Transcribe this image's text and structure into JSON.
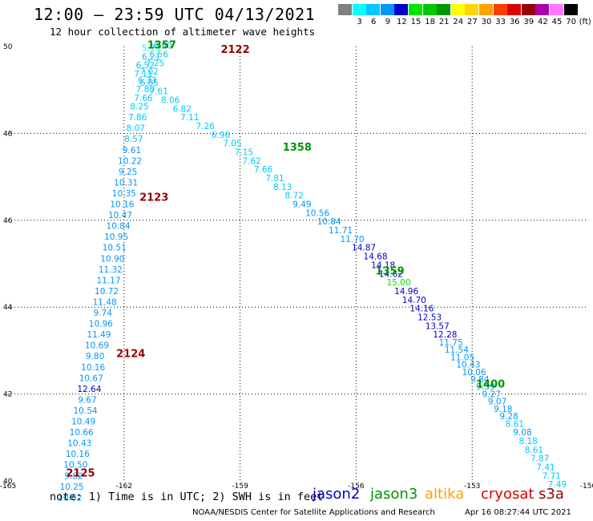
{
  "title": "12:00 — 23:59 UTC 04/13/2021",
  "subtitle": "12 hour collection of altimeter wave heights",
  "colorbar": {
    "unit": "(ft)",
    "swatches": [
      {
        "label": "",
        "color": "#808080"
      },
      {
        "label": "3",
        "color": "#00ffff"
      },
      {
        "label": "6",
        "color": "#00c8ff"
      },
      {
        "label": "9",
        "color": "#0096ff"
      },
      {
        "label": "12",
        "color": "#0000cd"
      },
      {
        "label": "15",
        "color": "#00e600"
      },
      {
        "label": "18",
        "color": "#00c800"
      },
      {
        "label": "21",
        "color": "#009600"
      },
      {
        "label": "24",
        "color": "#ffff00"
      },
      {
        "label": "27",
        "color": "#ffd200"
      },
      {
        "label": "30",
        "color": "#ffa000"
      },
      {
        "label": "33",
        "color": "#ff3c00"
      },
      {
        "label": "36",
        "color": "#dc0000"
      },
      {
        "label": "39",
        "color": "#960000"
      },
      {
        "label": "42",
        "color": "#aa00aa"
      },
      {
        "label": "45",
        "color": "#ff78ff"
      },
      {
        "label": "70",
        "color": "#000000"
      }
    ]
  },
  "chart_data": {
    "type": "scatter",
    "title": "12:00 — 23:59 UTC 04/13/2021",
    "xlim": [
      -165,
      -150
    ],
    "ylim": [
      40,
      50
    ],
    "xticks": [
      -165,
      -162,
      -159,
      -156,
      -153,
      -150
    ],
    "xtick_labels": [
      "-165",
      "-162",
      "-159",
      "-156",
      "-153",
      "-150"
    ],
    "yticks": [
      40,
      42,
      44,
      46,
      48,
      50
    ],
    "ytick_labels": [
      "40",
      "42",
      "44",
      "46",
      "48",
      "50"
    ],
    "grid": true,
    "time_labels": [
      {
        "text": "1357",
        "lon": -161.4,
        "lat": 49.95,
        "color": "#009600"
      },
      {
        "text": "2122",
        "lon": -159.5,
        "lat": 49.85,
        "color": "#960000"
      },
      {
        "text": "1358",
        "lon": -157.9,
        "lat": 47.6,
        "color": "#009600"
      },
      {
        "text": "2123",
        "lon": -161.6,
        "lat": 46.45,
        "color": "#960000"
      },
      {
        "text": "1359",
        "lon": -155.5,
        "lat": 44.75,
        "color": "#009600"
      },
      {
        "text": "2124",
        "lon": -162.2,
        "lat": 42.85,
        "color": "#960000"
      },
      {
        "text": "1400",
        "lon": -152.9,
        "lat": 42.15,
        "color": "#009600"
      },
      {
        "text": "2125",
        "lon": -163.5,
        "lat": 40.1,
        "color": "#960000"
      }
    ],
    "series": [
      {
        "name": "jason3",
        "points": [
          {
            "lon": -161.3,
            "lat": 49.9,
            "v": "5.75"
          },
          {
            "lon": -161.3,
            "lat": 49.7,
            "v": "6.21"
          },
          {
            "lon": -161.45,
            "lat": 49.5,
            "v": "6.52"
          },
          {
            "lon": -161.5,
            "lat": 49.3,
            "v": "7.11"
          },
          {
            "lon": -161.35,
            "lat": 49.1,
            "v": "6.85"
          },
          {
            "lon": -161.1,
            "lat": 48.9,
            "v": "7.61"
          },
          {
            "lon": -160.8,
            "lat": 48.7,
            "v": "8.06"
          },
          {
            "lon": -160.5,
            "lat": 48.5,
            "v": "6.82"
          },
          {
            "lon": -160.3,
            "lat": 48.3,
            "v": "7.11"
          },
          {
            "lon": -159.9,
            "lat": 48.1,
            "v": "7.26"
          },
          {
            "lon": -159.5,
            "lat": 47.9,
            "v": "6.96"
          },
          {
            "lon": -159.2,
            "lat": 47.7,
            "v": "7.05"
          },
          {
            "lon": -158.9,
            "lat": 47.5,
            "v": "7.15"
          },
          {
            "lon": -158.7,
            "lat": 47.3,
            "v": "7.62"
          },
          {
            "lon": -158.4,
            "lat": 47.1,
            "v": "7.66"
          },
          {
            "lon": -158.1,
            "lat": 46.9,
            "v": "7.81"
          },
          {
            "lon": -157.9,
            "lat": 46.7,
            "v": "8.13"
          },
          {
            "lon": -157.6,
            "lat": 46.5,
            "v": "8.72"
          },
          {
            "lon": -157.4,
            "lat": 46.3,
            "v": "9.49"
          },
          {
            "lon": -157.0,
            "lat": 46.1,
            "v": "10.56"
          },
          {
            "lon": -156.7,
            "lat": 45.9,
            "v": "10.84"
          },
          {
            "lon": -156.4,
            "lat": 45.7,
            "v": "11.71"
          },
          {
            "lon": -156.1,
            "lat": 45.5,
            "v": "11.70"
          },
          {
            "lon": -155.8,
            "lat": 45.3,
            "v": "14.87"
          },
          {
            "lon": -155.5,
            "lat": 45.1,
            "v": "14.68"
          },
          {
            "lon": -155.3,
            "lat": 44.9,
            "v": "14.18"
          },
          {
            "lon": -155.1,
            "lat": 44.7,
            "v": "14.62"
          },
          {
            "lon": -154.9,
            "lat": 44.5,
            "v": "15.00"
          },
          {
            "lon": -154.7,
            "lat": 44.3,
            "v": "14.96"
          },
          {
            "lon": -154.5,
            "lat": 44.1,
            "v": "14.70"
          },
          {
            "lon": -154.3,
            "lat": 43.9,
            "v": "14.16"
          },
          {
            "lon": -154.1,
            "lat": 43.7,
            "v": "12.53"
          },
          {
            "lon": -153.9,
            "lat": 43.5,
            "v": "13.57"
          },
          {
            "lon": -153.7,
            "lat": 43.3,
            "v": "12.28"
          },
          {
            "lon": -153.55,
            "lat": 43.12,
            "v": "11.75"
          },
          {
            "lon": -153.4,
            "lat": 42.95,
            "v": "11.54"
          },
          {
            "lon": -153.25,
            "lat": 42.78,
            "v": "11.05"
          },
          {
            "lon": -153.1,
            "lat": 42.61,
            "v": "10.43"
          },
          {
            "lon": -152.95,
            "lat": 42.44,
            "v": "10.06"
          },
          {
            "lon": -152.8,
            "lat": 42.27,
            "v": "9.84"
          },
          {
            "lon": -152.65,
            "lat": 42.1,
            "v": "9.59"
          },
          {
            "lon": -152.5,
            "lat": 41.93,
            "v": "9.27"
          },
          {
            "lon": -152.35,
            "lat": 41.76,
            "v": "9.07"
          },
          {
            "lon": -152.2,
            "lat": 41.59,
            "v": "9.18"
          },
          {
            "lon": -152.05,
            "lat": 41.42,
            "v": "9.28"
          },
          {
            "lon": -151.9,
            "lat": 41.25,
            "v": "8.61"
          },
          {
            "lon": -151.7,
            "lat": 41.05,
            "v": "9.08"
          },
          {
            "lon": -151.55,
            "lat": 40.85,
            "v": "8.18"
          },
          {
            "lon": -151.4,
            "lat": 40.65,
            "v": "8.61"
          },
          {
            "lon": -151.25,
            "lat": 40.45,
            "v": "7.87"
          },
          {
            "lon": -151.1,
            "lat": 40.25,
            "v": "7.41"
          },
          {
            "lon": -150.95,
            "lat": 40.05,
            "v": "7.71"
          },
          {
            "lon": -150.8,
            "lat": 39.85,
            "v": "7.49"
          }
        ]
      },
      {
        "name": "cryosat",
        "points": [
          {
            "lon": -161.0,
            "lat": 49.95,
            "v": "6.90"
          },
          {
            "lon": -161.1,
            "lat": 49.75,
            "v": "6.56"
          },
          {
            "lon": -161.2,
            "lat": 49.55,
            "v": "7.25"
          },
          {
            "lon": -161.35,
            "lat": 49.35,
            "v": "7.02"
          },
          {
            "lon": -161.4,
            "lat": 49.15,
            "v": "6.33"
          },
          {
            "lon": -161.45,
            "lat": 48.95,
            "v": "7.80"
          },
          {
            "lon": -161.5,
            "lat": 48.75,
            "v": "7.66"
          },
          {
            "lon": -161.6,
            "lat": 48.55,
            "v": "8.25"
          },
          {
            "lon": -161.65,
            "lat": 48.3,
            "v": "7.86"
          },
          {
            "lon": -161.7,
            "lat": 48.05,
            "v": "8.07"
          },
          {
            "lon": -161.75,
            "lat": 47.8,
            "v": "8.57"
          },
          {
            "lon": -161.8,
            "lat": 47.55,
            "v": "9.61"
          },
          {
            "lon": -161.85,
            "lat": 47.3,
            "v": "10.22"
          },
          {
            "lon": -161.9,
            "lat": 47.05,
            "v": "9.25"
          },
          {
            "lon": -161.95,
            "lat": 46.8,
            "v": "10.31"
          },
          {
            "lon": -162.0,
            "lat": 46.55,
            "v": "10.35"
          },
          {
            "lon": -162.05,
            "lat": 46.3,
            "v": "10.16"
          },
          {
            "lon": -162.1,
            "lat": 46.05,
            "v": "10.47"
          },
          {
            "lon": -162.15,
            "lat": 45.8,
            "v": "10.84"
          },
          {
            "lon": -162.2,
            "lat": 45.55,
            "v": "10.95"
          },
          {
            "lon": -162.25,
            "lat": 45.3,
            "v": "10.51"
          },
          {
            "lon": -162.3,
            "lat": 45.05,
            "v": "10.90"
          },
          {
            "lon": -162.35,
            "lat": 44.8,
            "v": "11.32"
          },
          {
            "lon": -162.4,
            "lat": 44.55,
            "v": "11.17"
          },
          {
            "lon": -162.45,
            "lat": 44.3,
            "v": "10.72"
          },
          {
            "lon": -162.5,
            "lat": 44.05,
            "v": "11.48"
          },
          {
            "lon": -162.55,
            "lat": 43.8,
            "v": "9.74"
          },
          {
            "lon": -162.6,
            "lat": 43.55,
            "v": "10.96"
          },
          {
            "lon": -162.65,
            "lat": 43.3,
            "v": "11.49"
          },
          {
            "lon": -162.7,
            "lat": 43.05,
            "v": "10.69"
          },
          {
            "lon": -162.75,
            "lat": 42.8,
            "v": "9.80"
          },
          {
            "lon": -162.8,
            "lat": 42.55,
            "v": "10.16"
          },
          {
            "lon": -162.85,
            "lat": 42.3,
            "v": "10.67"
          },
          {
            "lon": -162.9,
            "lat": 42.05,
            "v": "12.64"
          },
          {
            "lon": -162.95,
            "lat": 41.8,
            "v": "9.67"
          },
          {
            "lon": -163.0,
            "lat": 41.55,
            "v": "10.54"
          },
          {
            "lon": -163.05,
            "lat": 41.3,
            "v": "10.49"
          },
          {
            "lon": -163.1,
            "lat": 41.05,
            "v": "10.66"
          },
          {
            "lon": -163.15,
            "lat": 40.8,
            "v": "10.43"
          },
          {
            "lon": -163.2,
            "lat": 40.55,
            "v": "10.16"
          },
          {
            "lon": -163.25,
            "lat": 40.3,
            "v": "10.50"
          },
          {
            "lon": -163.3,
            "lat": 40.05,
            "v": "9.82"
          },
          {
            "lon": -163.35,
            "lat": 39.8,
            "v": "10.25"
          },
          {
            "lon": -163.4,
            "lat": 39.55,
            "v": "10.62"
          }
        ]
      }
    ]
  },
  "note": "note: 1) Time is in UTC; 2) SWH is in feet",
  "legend": [
    {
      "label": "jason2",
      "color": "#0000cd"
    },
    {
      "label": "jason3",
      "color": "#009600"
    },
    {
      "label": "altika",
      "color": "#ffa000"
    },
    {
      "label": "cryosat",
      "color": "#dc0000"
    },
    {
      "label": "s3a",
      "color": "#960000"
    }
  ],
  "credit": "NOAA/NESDIS Center for Satellite Applications and Research",
  "timestamp": "Apr 16 08:27:44 UTC 2021"
}
